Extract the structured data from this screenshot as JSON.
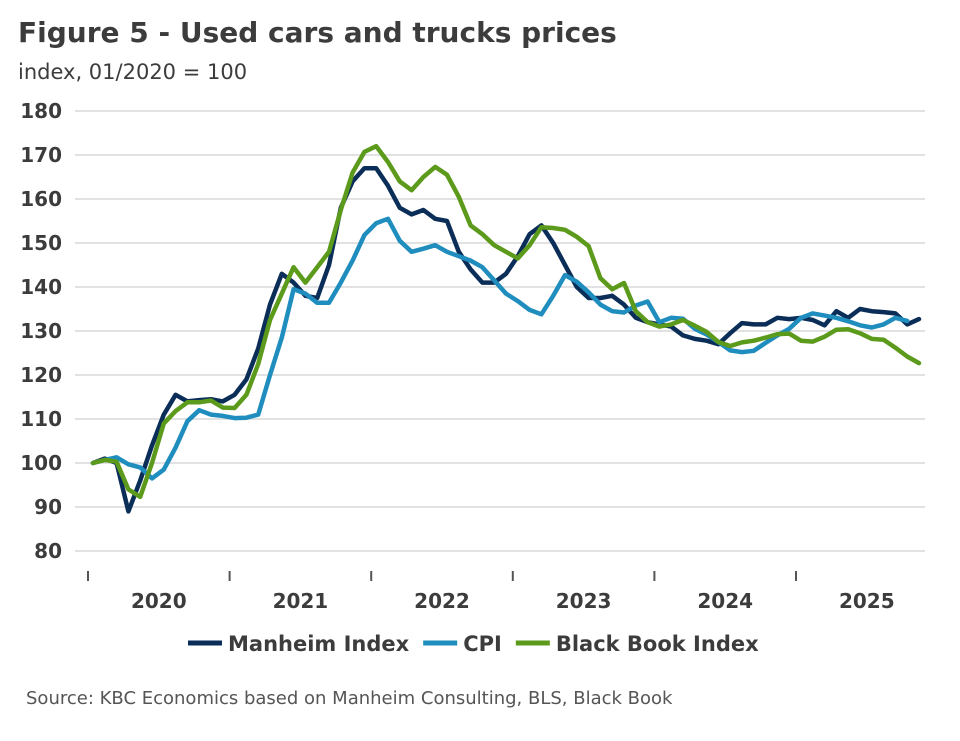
{
  "chart_data": {
    "type": "line",
    "title": "Figure 5 - Used cars and trucks prices",
    "subtitle": "index, 01/2020 = 100",
    "source": "Source: KBC Economics based on Manheim Consulting, BLS, Black Book",
    "x_start": "2020-01",
    "x_frequency": "monthly",
    "x_tick_labels": [
      "2020",
      "2021",
      "2022",
      "2023",
      "2024",
      "2025"
    ],
    "ylim": [
      80,
      180
    ],
    "y_ticks": [
      80,
      90,
      100,
      110,
      120,
      130,
      140,
      150,
      160,
      170,
      180
    ],
    "grid": true,
    "legend_position": "bottom",
    "series": [
      {
        "name": "Manheim Index",
        "color": "#0b2e59",
        "values": [
          100,
          101,
          100,
          89,
          96,
          104,
          111,
          115.5,
          114,
          114.3,
          114.5,
          114,
          115.5,
          119,
          126,
          136,
          143,
          141,
          138,
          137.5,
          145,
          158,
          164,
          167,
          167,
          163,
          158,
          156.5,
          157.5,
          155.5,
          155,
          148,
          144,
          141,
          141,
          143,
          147,
          152,
          154,
          150,
          145,
          140,
          137.5,
          137.5,
          138,
          136,
          133,
          132,
          131.5,
          131,
          129,
          128.2,
          127.8,
          127,
          129.5,
          131.8,
          131.5,
          131.5,
          133,
          132.7,
          133,
          132.5,
          131.3,
          134.5,
          133,
          135,
          134.5,
          134.3,
          134,
          131.5,
          132.7
        ]
      },
      {
        "name": "CPI",
        "color": "#1f8dbd",
        "values": [
          100,
          100.7,
          101.3,
          99.7,
          99,
          96.5,
          98.5,
          103.5,
          109.5,
          112,
          111,
          110.7,
          110.2,
          110.3,
          111,
          120,
          128.5,
          139.5,
          138.5,
          136.4,
          136.4,
          141,
          146,
          151.8,
          154.5,
          155.5,
          150.5,
          148,
          148.7,
          149.5,
          148,
          147,
          146,
          144.5,
          141.5,
          138.5,
          136.8,
          134.8,
          133.8,
          138,
          142.7,
          141.2,
          138.8,
          136,
          134.5,
          134.2,
          135.8,
          136.7,
          132,
          133,
          132.8,
          130.5,
          129.2,
          127.5,
          125.6,
          125.2,
          125.5,
          127.3,
          129,
          130.5,
          133,
          134,
          133.5,
          133,
          132.2,
          131.3,
          130.8,
          131.5,
          133,
          132.3
        ]
      },
      {
        "name": "Black Book Index",
        "color": "#5c9a1b",
        "values": [
          100,
          100.7,
          100.3,
          94,
          92.3,
          100,
          109,
          111.8,
          113.8,
          113.8,
          114.2,
          112.6,
          112.5,
          115.5,
          122.5,
          132.5,
          138.5,
          144.5,
          141,
          144.5,
          148,
          157.5,
          166,
          170.7,
          172,
          168.4,
          164,
          162,
          165,
          167.3,
          165.5,
          160.5,
          154,
          152,
          149.5,
          148,
          146.5,
          149.5,
          153.6,
          153.4,
          153,
          151.4,
          149.3,
          142,
          139.5,
          140.9,
          134.5,
          132,
          131,
          131.5,
          132.5,
          131.2,
          129.8,
          127.5,
          126.6,
          127.4,
          127.8,
          128.5,
          129.3,
          129.4,
          127.8,
          127.6,
          128.7,
          130.3,
          130.4,
          129.5,
          128.2,
          128,
          126.2,
          124.2,
          122.7
        ]
      }
    ]
  }
}
